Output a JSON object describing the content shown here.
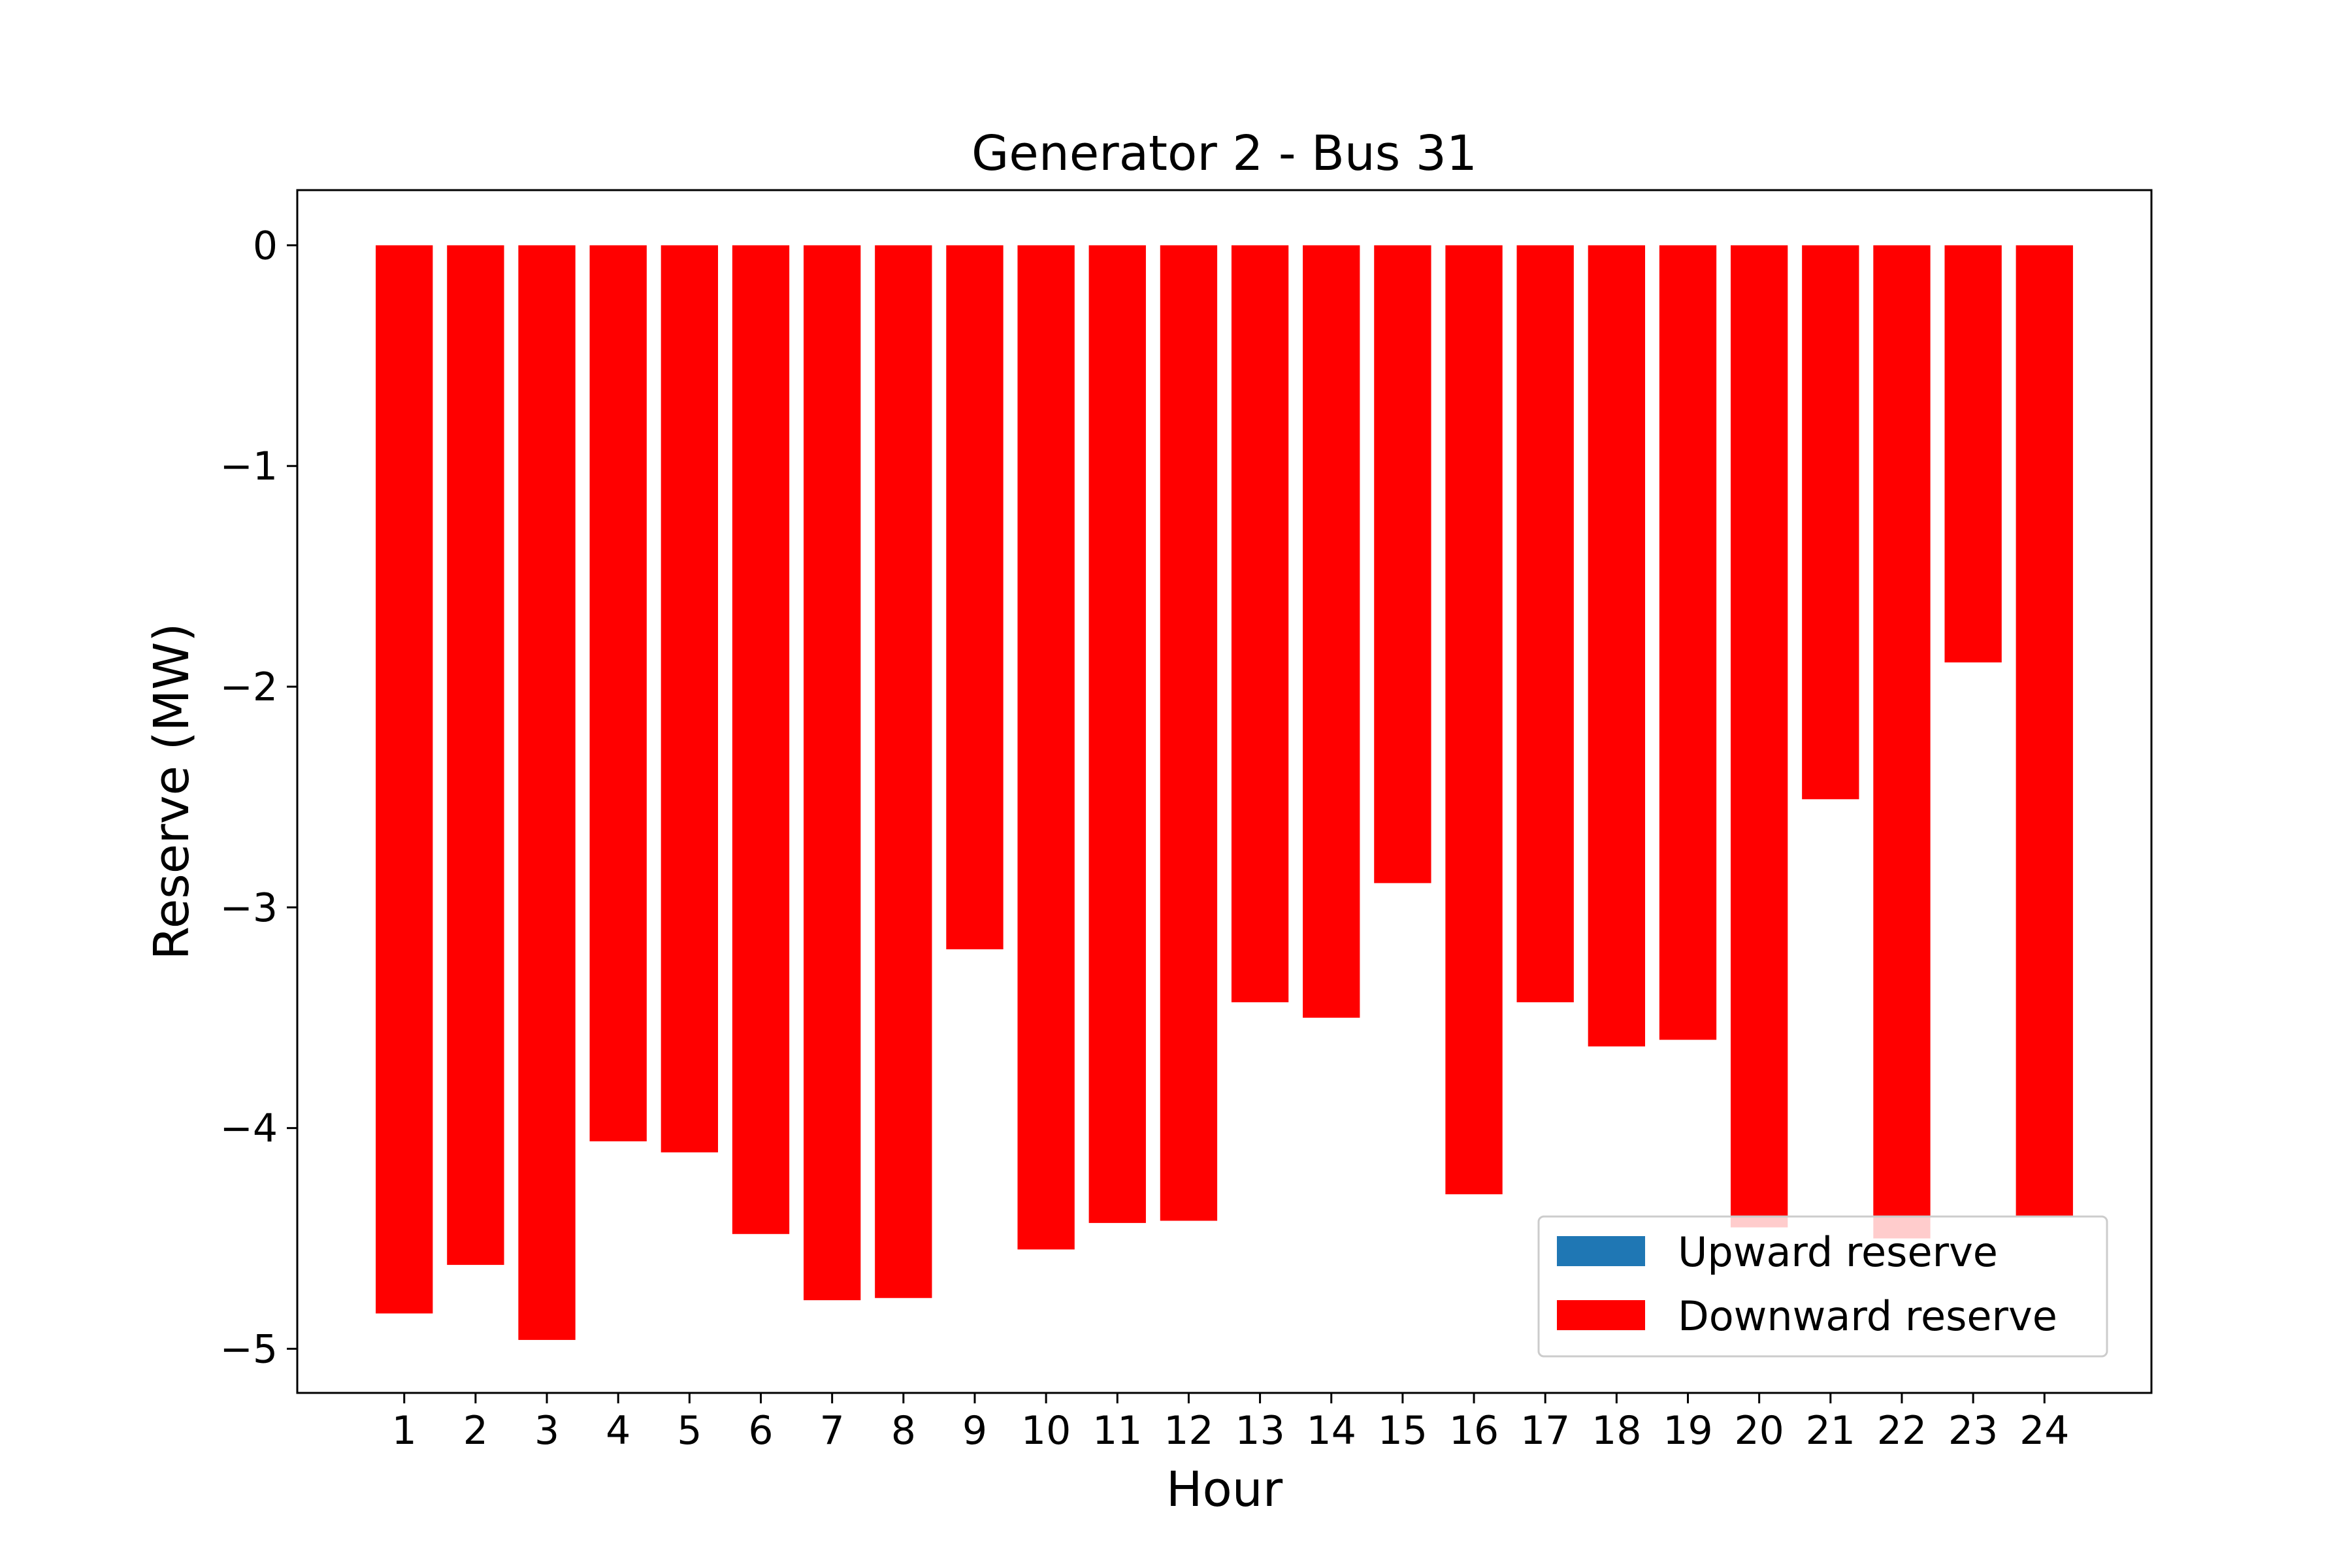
{
  "chart_data": {
    "type": "bar",
    "title": "Generator 2 - Bus 31",
    "xlabel": "Hour",
    "ylabel": "Reserve (MW)",
    "categories": [
      "1",
      "2",
      "3",
      "4",
      "5",
      "6",
      "7",
      "8",
      "9",
      "10",
      "11",
      "12",
      "13",
      "14",
      "15",
      "16",
      "17",
      "18",
      "19",
      "20",
      "21",
      "22",
      "23",
      "24"
    ],
    "series": [
      {
        "name": "Upward reserve",
        "color": "#1f77b4",
        "values": [
          0,
          0,
          0,
          0,
          0,
          0,
          0,
          0,
          0,
          0,
          0,
          0,
          0,
          0,
          0,
          0,
          0,
          0,
          0,
          0,
          0,
          0,
          0,
          0
        ]
      },
      {
        "name": "Downward reserve",
        "color": "#ff0000",
        "values": [
          -4.84,
          -4.62,
          -4.96,
          -4.06,
          -4.11,
          -4.48,
          -4.78,
          -4.77,
          -3.19,
          -4.55,
          -4.43,
          -4.42,
          -3.43,
          -3.5,
          -2.89,
          -4.3,
          -3.43,
          -3.63,
          -3.6,
          -4.45,
          -2.51,
          -4.5,
          -1.89,
          -4.4
        ]
      }
    ],
    "yticks": [
      0,
      -1,
      -2,
      -3,
      -4,
      -5
    ],
    "ytick_labels": [
      "0",
      "−1",
      "−2",
      "−3",
      "−4",
      "−5"
    ],
    "ylim": [
      -5.2,
      0.25
    ],
    "xlim": [
      -0.5,
      25.5
    ],
    "grid": false,
    "legend_position": "lower-right"
  }
}
